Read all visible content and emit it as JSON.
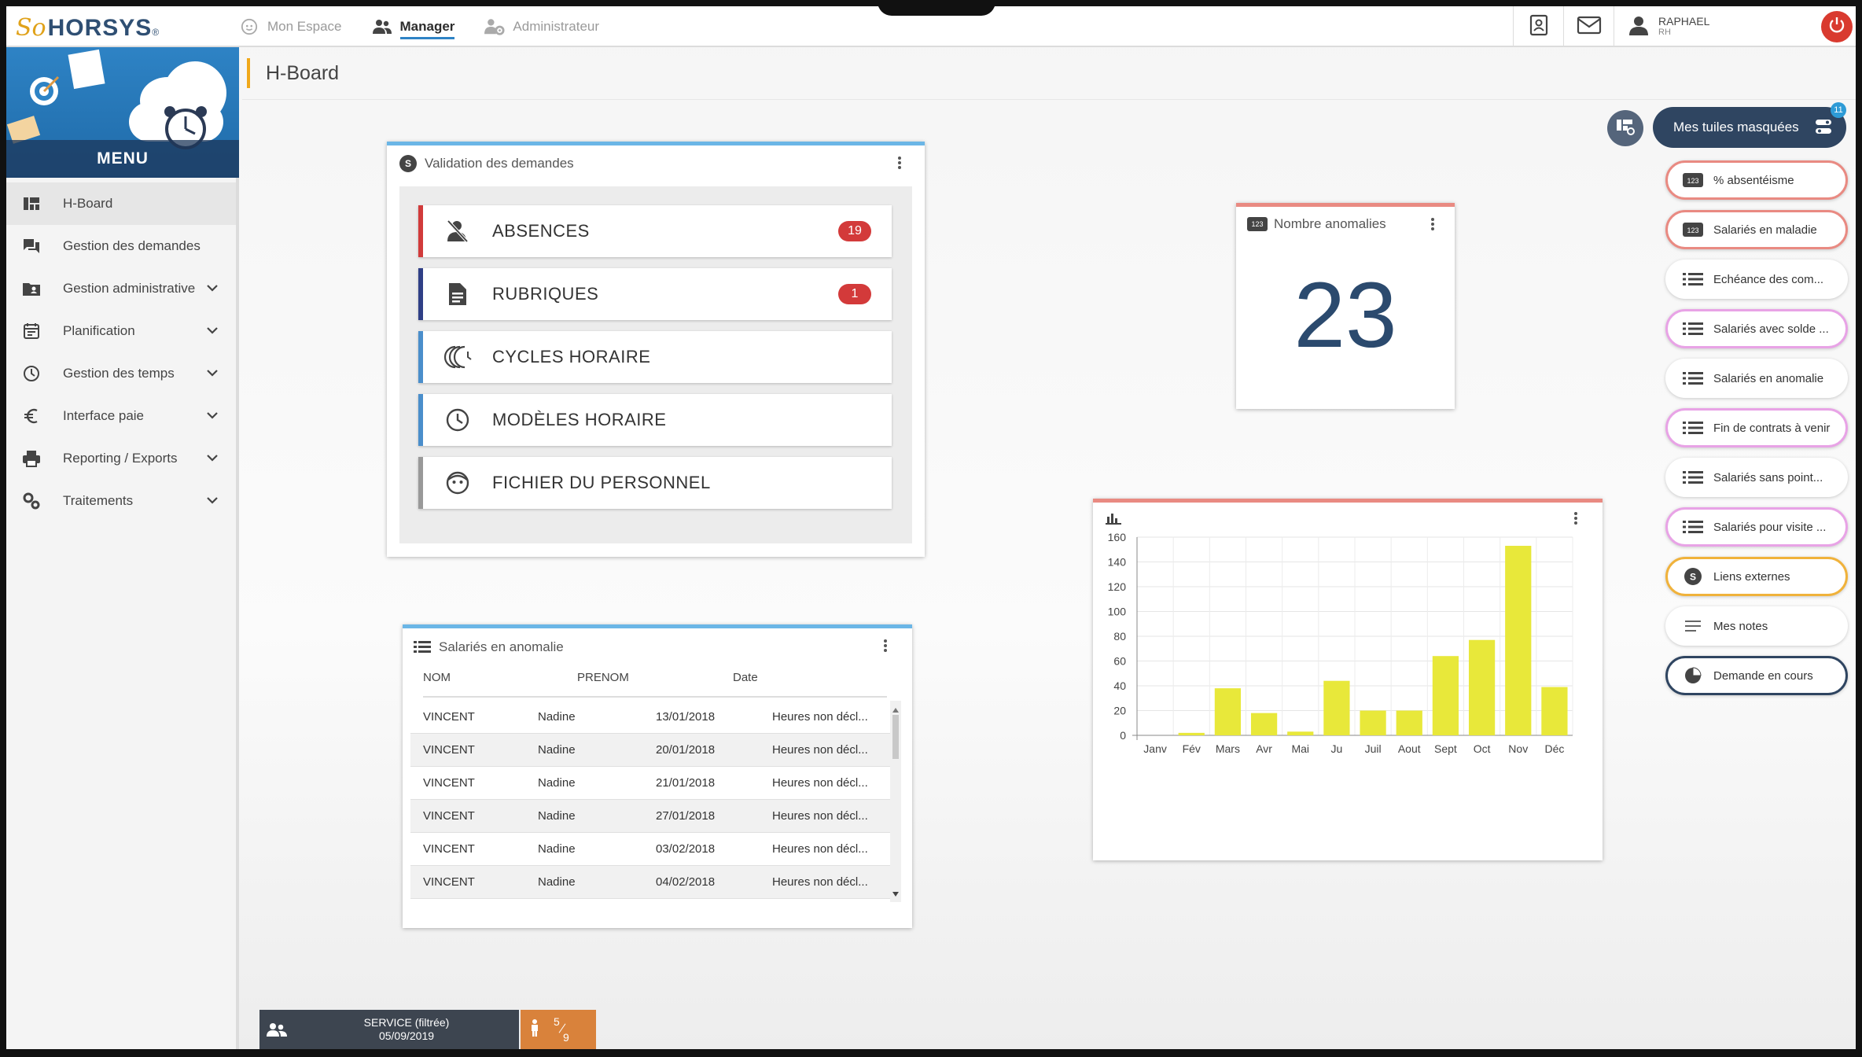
{
  "app": {
    "logo_prefix": "So",
    "logo_name": "HORSYS",
    "logo_reg": "®"
  },
  "topnav": [
    {
      "label": "Mon Espace",
      "icon": "face-icon",
      "active": false
    },
    {
      "label": "Manager",
      "icon": "people-icon",
      "active": true
    },
    {
      "label": "Administrateur",
      "icon": "admin-gear-icon",
      "active": false
    }
  ],
  "user": {
    "name": "RAPHAEL",
    "role": "RH"
  },
  "sidebar": {
    "banner_label": "MENU",
    "items": [
      {
        "label": "H-Board",
        "icon": "dashboard-icon",
        "active": true,
        "expandable": false
      },
      {
        "label": "Gestion des demandes",
        "icon": "forum-icon",
        "active": false,
        "expandable": false
      },
      {
        "label": "Gestion administrative",
        "icon": "contact-card-icon",
        "active": false,
        "expandable": true
      },
      {
        "label": "Planification",
        "icon": "calendar-icon",
        "active": false,
        "expandable": true
      },
      {
        "label": "Gestion des temps",
        "icon": "clock-icon",
        "active": false,
        "expandable": true
      },
      {
        "label": "Interface paie",
        "icon": "euro-icon",
        "active": false,
        "expandable": true
      },
      {
        "label": "Reporting / Exports",
        "icon": "printer-icon",
        "active": false,
        "expandable": true
      },
      {
        "label": "Traitements",
        "icon": "gears-icon",
        "active": false,
        "expandable": true
      }
    ]
  },
  "page": {
    "title": "H-Board"
  },
  "validation": {
    "badge": "S",
    "title": "Validation des demandes",
    "rows": [
      {
        "label": "ABSENCES",
        "icon": "person-off-icon",
        "count": "19",
        "color": "#d13b3b"
      },
      {
        "label": "RUBRIQUES",
        "icon": "document-icon",
        "count": "1",
        "color": "#2f3f86"
      },
      {
        "label": "CYCLES HORAIRE",
        "icon": "cycle-icon",
        "count": "",
        "color": "#4a8ecb"
      },
      {
        "label": "MODÈLES HORAIRE",
        "icon": "clock-icon",
        "count": "",
        "color": "#4a8ecb"
      },
      {
        "label": "FICHIER DU PERSONNEL",
        "icon": "face-icon",
        "count": "",
        "color": "#999999"
      }
    ]
  },
  "anomalies_table": {
    "title": "Salariés en anomalie",
    "columns": [
      "NOM",
      "PRENOM",
      "Date"
    ],
    "rows": [
      [
        "VINCENT",
        "Nadine",
        "13/01/2018",
        "Heures non décl..."
      ],
      [
        "VINCENT",
        "Nadine",
        "20/01/2018",
        "Heures non décl..."
      ],
      [
        "VINCENT",
        "Nadine",
        "21/01/2018",
        "Heures non décl..."
      ],
      [
        "VINCENT",
        "Nadine",
        "27/01/2018",
        "Heures non décl..."
      ],
      [
        "VINCENT",
        "Nadine",
        "03/02/2018",
        "Heures non décl..."
      ],
      [
        "VINCENT",
        "Nadine",
        "04/02/2018",
        "Heures non décl..."
      ]
    ]
  },
  "number_tile": {
    "badge": "123",
    "title": "Nombre anomalies",
    "value": "23"
  },
  "chart_data": {
    "type": "bar",
    "categories": [
      "Janv",
      "Fév",
      "Mars",
      "Avr",
      "Mai",
      "Ju",
      "Juil",
      "Aout",
      "Sept",
      "Oct",
      "Nov",
      "Déc"
    ],
    "values": [
      0,
      2,
      38,
      18,
      3,
      44,
      20,
      20,
      64,
      77,
      153,
      39
    ],
    "yticks": [
      0,
      20,
      40,
      60,
      80,
      100,
      120,
      140,
      160
    ],
    "ylim": [
      0,
      160
    ],
    "grid": true,
    "bar_color": "#e8e83a",
    "title": "",
    "xlabel": "",
    "ylabel": ""
  },
  "right_panel": {
    "hidden_tiles_label": "Mes tuiles masquées",
    "hidden_tiles_count": "11",
    "tiles": [
      {
        "label": "% absentéisme",
        "icon": "number-icon",
        "border": "#e98a82"
      },
      {
        "label": "Salariés en maladie",
        "icon": "number-icon",
        "border": "#e98a82"
      },
      {
        "label": "Echéance des com...",
        "icon": "list-icon",
        "border": ""
      },
      {
        "label": "Salariés avec solde ...",
        "icon": "list-icon",
        "border": "#e8a3e6"
      },
      {
        "label": "Salariés en anomalie",
        "icon": "list-icon",
        "border": ""
      },
      {
        "label": "Fin de contrats à venir",
        "icon": "list-icon",
        "border": "#e8a3e6"
      },
      {
        "label": "Salariés sans point...",
        "icon": "list-icon",
        "border": ""
      },
      {
        "label": "Salariés pour visite ...",
        "icon": "list-icon",
        "border": "#e8a3e6"
      },
      {
        "label": "Liens externes",
        "icon": "s-badge-icon",
        "border": "#f0b23b"
      },
      {
        "label": "Mes notes",
        "icon": "notes-icon",
        "border": ""
      },
      {
        "label": "Demande en cours",
        "icon": "pie-icon",
        "border": "#2f4561"
      }
    ]
  },
  "status": {
    "service_line1": "SERVICE (filtrée)",
    "service_line2": "05/09/2019",
    "count_num": "5",
    "count_den": "9"
  }
}
